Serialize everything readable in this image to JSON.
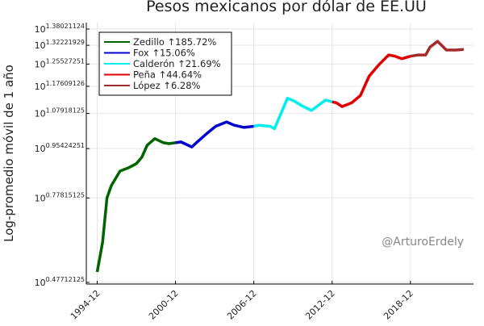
{
  "chart_data": {
    "type": "line",
    "title": "Pesos mexicanos por dólar de EE.UU",
    "y_label": "Log-promedio móvil de 1 año",
    "watermark": "@ArturoErdely",
    "y_log": true,
    "grid": true,
    "legend": "top-left",
    "xlim": [
      "1994-02",
      "2023-10"
    ],
    "xticks": [
      "1994-12",
      "2000-12",
      "2006-12",
      "2012-12",
      "2018-12"
    ],
    "ylim": [
      2.96,
      25.3
    ],
    "yticks": [
      {
        "value": 3,
        "label": "10^0.47712125"
      },
      {
        "value": 6,
        "label": "10^0.77815125"
      },
      {
        "value": 9,
        "label": "10^0.95424251"
      },
      {
        "value": 12,
        "label": "10^1.07918125"
      },
      {
        "value": 15,
        "label": "10^1.17609126"
      },
      {
        "value": 18,
        "label": "10^1.25527251"
      },
      {
        "value": 21,
        "label": "10^1.32221929"
      },
      {
        "value": 24,
        "label": "10^1.38021124"
      }
    ],
    "series": [
      {
        "name": "Zedillo ↑185.72%",
        "color": "#006400",
        "x": [
          "1994-12",
          "1995-05",
          "1995-09",
          "1996-01",
          "1996-09",
          "1997-05",
          "1997-12",
          "1998-05",
          "1998-10",
          "1999-05",
          "2000-01",
          "2000-06",
          "2000-12"
        ],
        "values": [
          3.27,
          4.18,
          6.0,
          6.64,
          7.48,
          7.69,
          7.95,
          8.38,
          9.25,
          9.76,
          9.44,
          9.37,
          9.44
        ]
      },
      {
        "name": "Fox ↑15.06%",
        "color": "#0000cd",
        "x": [
          "2000-12",
          "2001-05",
          "2002-03",
          "2002-08",
          "2003-05",
          "2004-01",
          "2004-11",
          "2005-06",
          "2006-03",
          "2006-12"
        ],
        "values": [
          9.44,
          9.5,
          9.12,
          9.5,
          10.2,
          10.8,
          11.2,
          10.9,
          10.7,
          10.8
        ]
      },
      {
        "name": "Calderón ↑21.69%",
        "color": "#00eeee",
        "x": [
          "2006-12",
          "2007-05",
          "2008-03",
          "2008-07",
          "2009-07",
          "2010-01",
          "2010-08",
          "2011-05",
          "2012-06",
          "2012-12"
        ],
        "values": [
          10.8,
          10.9,
          10.8,
          10.6,
          13.6,
          13.3,
          12.8,
          12.3,
          13.4,
          13.2
        ]
      },
      {
        "name": "Peña ↑44.64%",
        "color": "#e00000",
        "x": [
          "2012-12",
          "2013-04",
          "2013-09",
          "2014-06",
          "2015-02",
          "2015-10",
          "2016-07",
          "2017-04",
          "2017-10",
          "2018-04",
          "2018-12"
        ],
        "values": [
          13.2,
          13.1,
          12.7,
          13.1,
          13.9,
          16.3,
          17.9,
          19.4,
          19.2,
          18.8,
          19.2
        ]
      },
      {
        "name": "López ↑6.28%",
        "color": "#a52a2a",
        "x": [
          "2018-12",
          "2019-07",
          "2020-02",
          "2020-06",
          "2021-01",
          "2021-09",
          "2022-06",
          "2023-01"
        ],
        "values": [
          19.2,
          19.4,
          19.4,
          20.7,
          21.7,
          20.2,
          20.2,
          20.3
        ]
      }
    ]
  }
}
